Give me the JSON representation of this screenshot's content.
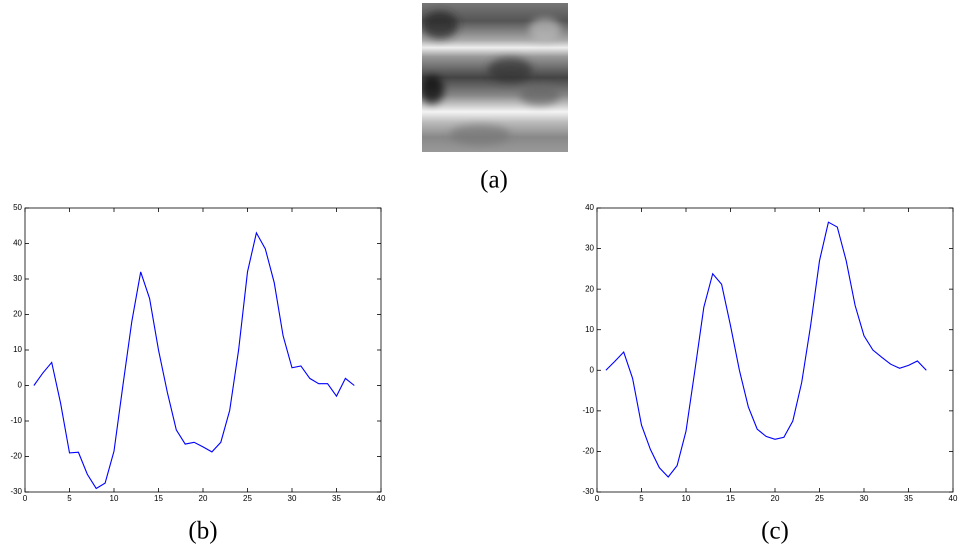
{
  "image": {
    "caption": "(a)"
  },
  "chart_data": [
    {
      "type": "line",
      "caption": "(b)",
      "x": [
        1,
        2,
        3,
        4,
        5,
        6,
        7,
        8,
        9,
        10,
        11,
        12,
        13,
        14,
        15,
        16,
        17,
        18,
        19,
        20,
        21,
        22,
        23,
        24,
        25,
        26,
        27,
        28,
        29,
        30,
        31,
        32,
        33,
        34,
        35,
        36,
        37
      ],
      "series": [
        {
          "color": "#0000ff",
          "values": [
            0,
            3.5,
            6.5,
            -5,
            -19,
            -18.8,
            -25,
            -29,
            -27.5,
            -18.5,
            0,
            18,
            32,
            24.5,
            10,
            -2,
            -12.5,
            -16.5,
            -16,
            -17.3,
            -18.7,
            -16,
            -7,
            10,
            32,
            43,
            38.5,
            29,
            14,
            5,
            5.5,
            2,
            0.5,
            0.5,
            -3,
            2,
            0
          ]
        }
      ],
      "xlim": [
        0,
        40
      ],
      "xticks": [
        0,
        5,
        10,
        15,
        20,
        25,
        30,
        35,
        40
      ],
      "ylim": [
        -30,
        50
      ],
      "yticks": [
        -30,
        -20,
        -10,
        0,
        10,
        20,
        30,
        40,
        50
      ]
    },
    {
      "type": "line",
      "caption": "(c)",
      "x": [
        1,
        2,
        3,
        4,
        5,
        6,
        7,
        8,
        9,
        10,
        11,
        12,
        13,
        14,
        15,
        16,
        17,
        18,
        19,
        20,
        21,
        22,
        23,
        24,
        25,
        26,
        27,
        28,
        29,
        30,
        31,
        32,
        33,
        34,
        35,
        36,
        37
      ],
      "series": [
        {
          "color": "#0000ff",
          "values": [
            0,
            2.2,
            4.5,
            -2,
            -13.5,
            -19.5,
            -24,
            -26.3,
            -23.5,
            -15,
            0,
            15.5,
            23.8,
            21.2,
            11,
            0,
            -9,
            -14.5,
            -16.3,
            -17,
            -16.5,
            -12.5,
            -3,
            11,
            27,
            36.5,
            35.3,
            27,
            16,
            8.5,
            5,
            3.2,
            1.5,
            0.5,
            1.2,
            2.3,
            0
          ]
        }
      ],
      "xlim": [
        0,
        40
      ],
      "xticks": [
        0,
        5,
        10,
        15,
        20,
        25,
        30,
        35,
        40
      ],
      "ylim": [
        -30,
        40
      ],
      "yticks": [
        -30,
        -20,
        -10,
        0,
        10,
        20,
        30,
        40
      ]
    }
  ]
}
